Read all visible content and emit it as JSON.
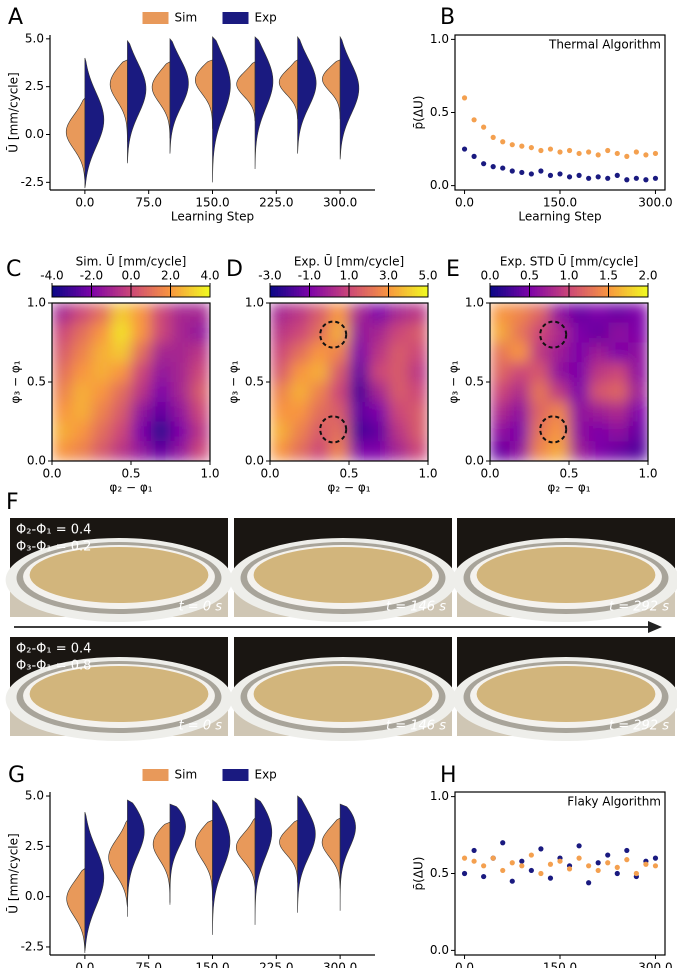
{
  "chart_data": [
    {
      "panel": "A",
      "type": "violin",
      "y_label": "Ū [mm/cycle]",
      "x_label": "Learning Step",
      "x": [
        0,
        50,
        100,
        150,
        200,
        250,
        300
      ],
      "xlim": [
        -41,
        341
      ],
      "xticks": [
        {
          "value": 0,
          "label": "0.0"
        },
        {
          "value": 75,
          "label": "75.0"
        },
        {
          "value": 150,
          "label": "150.0"
        },
        {
          "value": 225,
          "label": "225.0"
        },
        {
          "value": 300,
          "label": "300.0"
        }
      ],
      "ylim": [
        -2.9,
        5.2
      ],
      "yticks": [
        -2.5,
        {
          "value": 0,
          "label": "0.0"
        },
        2.5,
        {
          "value": 5,
          "label": "5.0"
        }
      ],
      "series": [
        {
          "name": "Sim",
          "color": "#e8995a",
          "side": "left",
          "min": [
            -2.4,
            -0.4,
            -0.2,
            0.3,
            0.7,
            0.8,
            0.8
          ],
          "max": [
            1.9,
            3.9,
            3.8,
            3.9,
            3.8,
            3.9,
            3.9
          ],
          "peak": [
            0.2,
            2.8,
            2.6,
            3.0,
            2.7,
            2.8,
            3.0
          ]
        },
        {
          "name": "Exp",
          "color": "#1a1a80",
          "side": "right",
          "min": [
            -2.8,
            -1.5,
            -1.0,
            -2.5,
            -1.8,
            -1.0,
            -1.3
          ],
          "max": [
            4.0,
            4.9,
            5.0,
            5.1,
            5.1,
            5.1,
            5.1
          ],
          "peak": [
            0.8,
            2.5,
            2.8,
            2.8,
            3.0,
            2.8,
            2.5
          ]
        }
      ]
    },
    {
      "panel": "B",
      "type": "scatter",
      "annotation": "Thermal Algorithm",
      "y_label": "p̄(ΔU)",
      "x_label": "Learning Step",
      "x": [
        0,
        15,
        30,
        45,
        60,
        75,
        90,
        105,
        120,
        135,
        150,
        165,
        180,
        195,
        210,
        225,
        240,
        255,
        270,
        285,
        300
      ],
      "xlim": [
        -15,
        315
      ],
      "xticks": [
        {
          "value": 0,
          "label": "0.0"
        },
        {
          "value": 150,
          "label": "150.0"
        },
        {
          "value": 300,
          "label": "300.0"
        }
      ],
      "ylim": [
        -0.03,
        1.03
      ],
      "yticks": [
        {
          "value": 0,
          "label": "0.0"
        },
        0.5,
        {
          "value": 1,
          "label": "1.0"
        }
      ],
      "series": [
        {
          "color": "#f4a04f",
          "values": [
            0.6,
            0.45,
            0.4,
            0.33,
            0.3,
            0.28,
            0.27,
            0.26,
            0.24,
            0.25,
            0.23,
            0.24,
            0.22,
            0.23,
            0.21,
            0.24,
            0.22,
            0.2,
            0.23,
            0.21,
            0.22
          ]
        },
        {
          "color": "#1a1a80",
          "values": [
            0.25,
            0.2,
            0.15,
            0.13,
            0.12,
            0.1,
            0.09,
            0.08,
            0.1,
            0.07,
            0.08,
            0.06,
            0.07,
            0.05,
            0.06,
            0.05,
            0.07,
            0.04,
            0.05,
            0.04,
            0.05
          ]
        }
      ]
    },
    {
      "panel": "C",
      "type": "heatmap",
      "colorbar_label": "Sim. Ū [mm/cycle]",
      "colormap": "plasma",
      "clim": [
        -4,
        4
      ],
      "cticks": [
        {
          "value": -4,
          "label": "-4.0"
        },
        {
          "value": -2,
          "label": "-2.0"
        },
        {
          "value": 0,
          "label": "0.0"
        },
        {
          "value": 2,
          "label": "2.0"
        },
        {
          "value": 4,
          "label": "4.0"
        }
      ],
      "x_label": "φ₂ − φ₁",
      "y_label": "φ₃ − φ₁",
      "xlim": [
        0,
        1
      ],
      "ylim": [
        0,
        1
      ],
      "xticks": [
        {
          "value": 0,
          "label": "0.0"
        },
        0.5,
        {
          "value": 1,
          "label": "1.0"
        }
      ],
      "yticks": [
        {
          "value": 0,
          "label": "0.0"
        },
        0.5,
        {
          "value": 1,
          "label": "1.0"
        }
      ],
      "values": [
        [
          -1,
          0,
          1,
          3,
          2,
          0,
          -1,
          -1
        ],
        [
          0,
          1,
          2,
          3.5,
          2,
          0,
          -1,
          -1.5
        ],
        [
          0.5,
          1.5,
          2.5,
          3,
          1,
          -1,
          -1,
          -0.5
        ],
        [
          1,
          2,
          2.5,
          2,
          0,
          -1.5,
          -1,
          0
        ],
        [
          1.5,
          2.5,
          2,
          1,
          -0.5,
          -2,
          -1,
          0.5
        ],
        [
          2,
          2.5,
          1.5,
          0.5,
          -1.5,
          -2.5,
          -1.5,
          0
        ],
        [
          2.5,
          2,
          1,
          0,
          -2,
          -3.5,
          -2,
          -0.5
        ],
        [
          2,
          1.5,
          0.5,
          -0.5,
          -1.5,
          -2.5,
          -1.5,
          0
        ]
      ]
    },
    {
      "panel": "D",
      "type": "heatmap",
      "colorbar_label": "Exp. Ū [mm/cycle]",
      "colormap": "plasma",
      "clim": [
        -3,
        5
      ],
      "cticks": [
        {
          "value": -3,
          "label": "-3.0"
        },
        {
          "value": -1,
          "label": "-1.0"
        },
        {
          "value": 1,
          "label": "1.0"
        },
        {
          "value": 3,
          "label": "3.0"
        },
        {
          "value": 5,
          "label": "5.0"
        }
      ],
      "x_label": "φ₂ − φ₁",
      "y_label": "φ₃ − φ₁",
      "xlim": [
        0,
        1
      ],
      "ylim": [
        0,
        1
      ],
      "xticks": [
        {
          "value": 0,
          "label": "0.0"
        },
        0.5,
        {
          "value": 1,
          "label": "1.0"
        }
      ],
      "yticks": [
        {
          "value": 0,
          "label": "0.0"
        },
        0.5,
        {
          "value": 1,
          "label": "1.0"
        }
      ],
      "markers": [
        [
          0.4,
          0.8
        ],
        [
          0.4,
          0.2
        ]
      ],
      "values": [
        [
          0,
          0.5,
          1.5,
          3,
          0,
          -1,
          0,
          0.5
        ],
        [
          0.5,
          1,
          2,
          3.5,
          -0.5,
          0,
          1,
          1.5
        ],
        [
          1,
          2,
          3,
          2.5,
          -1,
          0.5,
          1.5,
          1
        ],
        [
          1.5,
          3,
          3.5,
          1.5,
          -1.5,
          1,
          1.5,
          0.5
        ],
        [
          2.5,
          3.5,
          2.5,
          1,
          -2,
          0,
          1.5,
          1
        ],
        [
          3,
          3,
          2,
          1.5,
          -1.5,
          -1,
          1,
          1.5
        ],
        [
          3.5,
          2.5,
          1.5,
          2,
          -2,
          -1.5,
          0.5,
          1.5
        ],
        [
          3,
          2,
          1,
          2.5,
          -1,
          -1,
          0,
          1
        ]
      ]
    },
    {
      "panel": "E",
      "type": "heatmap",
      "colorbar_label": "Exp. STD Ū [mm/cycle]",
      "colormap": "plasma",
      "clim": [
        0,
        2
      ],
      "cticks": [
        {
          "value": 0,
          "label": "0.0"
        },
        0.5,
        {
          "value": 1,
          "label": "1.0"
        },
        1.5,
        {
          "value": 2,
          "label": "2.0"
        }
      ],
      "x_label": "φ₂ − φ₁",
      "y_label": "φ₃ − φ₁",
      "xlim": [
        0,
        1
      ],
      "ylim": [
        0,
        1
      ],
      "xticks": [
        {
          "value": 0,
          "label": "0.0"
        },
        0.5,
        {
          "value": 1,
          "label": "1.0"
        }
      ],
      "yticks": [
        {
          "value": 0,
          "label": "0.0"
        },
        0.5,
        {
          "value": 1,
          "label": "1.0"
        }
      ],
      "markers": [
        [
          0.4,
          0.8
        ],
        [
          0.4,
          0.2
        ]
      ],
      "values": [
        [
          1.5,
          1.4,
          1.2,
          0.6,
          0.4,
          0.5,
          0.4,
          0.5
        ],
        [
          1.6,
          1.3,
          1.0,
          0.8,
          0.5,
          0.4,
          0.6,
          0.5
        ],
        [
          1.3,
          1.5,
          0.9,
          0.7,
          0.5,
          0.7,
          0.5,
          0.6
        ],
        [
          1.2,
          1.0,
          1.1,
          0.6,
          0.5,
          0.9,
          1.0,
          0.6
        ],
        [
          1.0,
          0.8,
          1.3,
          0.9,
          0.5,
          1.1,
          1.2,
          0.7
        ],
        [
          0.8,
          0.6,
          1.2,
          1.4,
          0.6,
          0.7,
          0.8,
          0.5
        ],
        [
          0.6,
          0.5,
          1.3,
          1.5,
          0.6,
          0.5,
          0.6,
          0.4
        ],
        [
          0.4,
          0.6,
          1.4,
          1.6,
          0.7,
          0.5,
          0.4,
          0.3
        ]
      ]
    },
    {
      "panel": "G",
      "type": "violin",
      "y_label": "Ū [mm/cycle]",
      "x_label": "Learning Step",
      "x": [
        0,
        50,
        100,
        150,
        200,
        250,
        300
      ],
      "xlim": [
        -41,
        341
      ],
      "xticks": [
        {
          "value": 0,
          "label": "0.0"
        },
        {
          "value": 75,
          "label": "75.0"
        },
        {
          "value": 150,
          "label": "150.0"
        },
        {
          "value": 225,
          "label": "225.0"
        },
        {
          "value": 300,
          "label": "300.0"
        }
      ],
      "ylim": [
        -2.9,
        5.2
      ],
      "yticks": [
        -2.5,
        {
          "value": 0,
          "label": "0.0"
        },
        2.5,
        {
          "value": 5,
          "label": "5.0"
        }
      ],
      "series": [
        {
          "name": "Sim",
          "color": "#e8995a",
          "side": "left",
          "min": [
            -2.8,
            -0.5,
            -0.3,
            -0.2,
            0.5,
            0.7,
            0.4
          ],
          "max": [
            1.4,
            3.8,
            3.7,
            3.8,
            3.9,
            3.8,
            3.9
          ],
          "peak": [
            0.0,
            2.0,
            2.8,
            2.8,
            2.5,
            2.8,
            2.8
          ]
        },
        {
          "name": "Exp",
          "color": "#1a1a80",
          "side": "right",
          "min": [
            -2.7,
            -1.0,
            -0.4,
            -1.9,
            -1.4,
            -0.8,
            -0.7
          ],
          "max": [
            4.2,
            4.8,
            4.6,
            4.8,
            4.9,
            5.0,
            4.6
          ],
          "peak": [
            1.0,
            3.5,
            3.8,
            3.0,
            3.5,
            3.3,
            3.8
          ]
        }
      ]
    },
    {
      "panel": "H",
      "type": "scatter",
      "annotation": "Flaky Algorithm",
      "y_label": "p̄(ΔU)",
      "x_label": "Learning Step",
      "x": [
        0,
        15,
        30,
        45,
        60,
        75,
        90,
        105,
        120,
        135,
        150,
        165,
        180,
        195,
        210,
        225,
        240,
        255,
        270,
        285,
        300
      ],
      "xlim": [
        -15,
        315
      ],
      "xticks": [
        {
          "value": 0,
          "label": "0.0"
        },
        {
          "value": 150,
          "label": "150.0"
        },
        {
          "value": 300,
          "label": "300.0"
        }
      ],
      "ylim": [
        -0.03,
        1.03
      ],
      "yticks": [
        {
          "value": 0,
          "label": "0.0"
        },
        0.5,
        {
          "value": 1,
          "label": "1.0"
        }
      ],
      "series": [
        {
          "color": "#1a1a80",
          "values": [
            0.5,
            0.65,
            0.48,
            0.6,
            0.7,
            0.45,
            0.58,
            0.52,
            0.66,
            0.47,
            0.6,
            0.55,
            0.68,
            0.44,
            0.57,
            0.62,
            0.5,
            0.65,
            0.48,
            0.58,
            0.6
          ]
        },
        {
          "color": "#f4a04f",
          "values": [
            0.6,
            0.58,
            0.55,
            0.6,
            0.52,
            0.57,
            0.55,
            0.62,
            0.5,
            0.56,
            0.58,
            0.53,
            0.6,
            0.55,
            0.52,
            0.57,
            0.54,
            0.59,
            0.5,
            0.56,
            0.55
          ]
        }
      ]
    }
  ],
  "photos": {
    "panel": "F",
    "rows": [
      {
        "lines": [
          "Φ₂-Φ₁ = 0.4",
          "Φ₃-Φ₁ = 0.2"
        ],
        "times": [
          "t = 0 s",
          "t = 146 s",
          "t = 292 s"
        ]
      },
      {
        "lines": [
          "Φ₂-Φ₁ = 0.4",
          "Φ₃-Φ₁ = 0.8"
        ],
        "times": [
          "t = 0 s",
          "t = 146 s",
          "t = 292 s"
        ]
      }
    ]
  }
}
